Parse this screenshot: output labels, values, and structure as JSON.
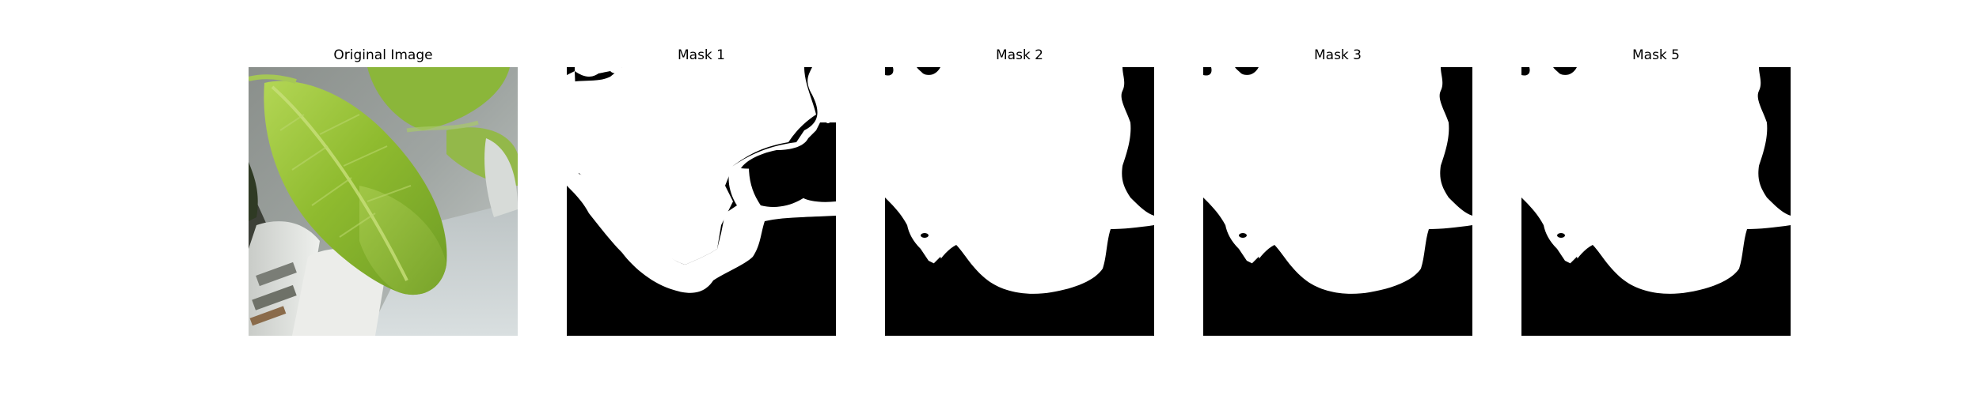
{
  "panels": [
    {
      "title": "Original Image"
    },
    {
      "title": "Mask 1"
    },
    {
      "title": "Mask 2"
    },
    {
      "title": "Mask 3"
    },
    {
      "title": "Mask 5"
    }
  ],
  "colors": {
    "background": "#ffffff",
    "mask_foreground": "#ffffff",
    "mask_background": "#000000",
    "leaf_green": "#9bc33a",
    "leaf_dark": "#5f8f22",
    "pot_white": "#e4e6e3",
    "shadow_gray": "#8e9390"
  }
}
